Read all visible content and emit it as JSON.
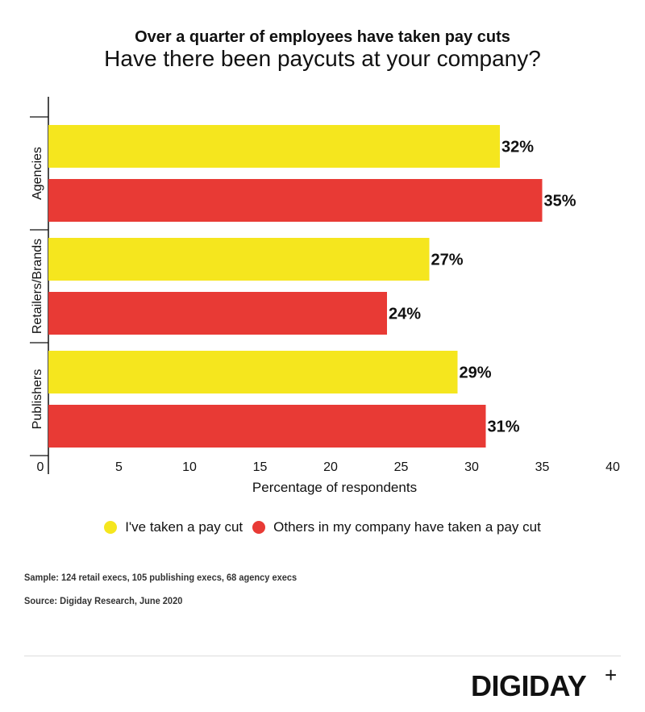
{
  "header": {
    "title": "Over a quarter of employees have taken pay cuts",
    "subtitle": "Have there been paycuts at your company?"
  },
  "chart_data": {
    "type": "bar",
    "orientation": "horizontal",
    "categories": [
      "Agencies",
      "Retailers/Brands",
      "Publishers"
    ],
    "series": [
      {
        "name": "I've taken a pay cut",
        "color": "#f5e61e",
        "values": [
          32,
          27,
          29
        ],
        "labels": [
          "32%",
          "27%",
          "29%"
        ]
      },
      {
        "name": "Others in my company have taken a pay cut",
        "color": "#e83a35",
        "values": [
          35,
          24,
          31
        ],
        "labels": [
          "35%",
          "24%",
          "31%"
        ]
      }
    ],
    "xlim": [
      0,
      40
    ],
    "xticks": [
      0,
      5,
      10,
      15,
      20,
      25,
      30,
      35,
      40
    ],
    "xlabel": "Percentage of respondents",
    "legend_position": "bottom",
    "grid": false
  },
  "notes": {
    "sample": "Sample: 124 retail execs, 105 publishing execs, 68 agency execs",
    "source": "Source: Digiday Research, June 2020"
  },
  "brand": {
    "logo_text": "DIGIDAY",
    "logo_mark": "+"
  }
}
